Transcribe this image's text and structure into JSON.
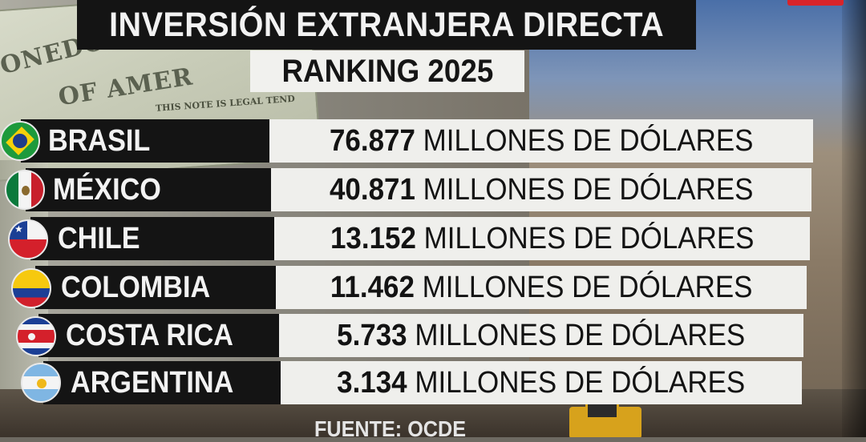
{
  "header": {
    "title": "INVERSIÓN EXTRANJERA DIRECTA",
    "subtitle": "RANKING 2025"
  },
  "background": {
    "banknote_lines": [
      "ONEDO",
      "OF AMER",
      "THIS NOTE IS LEGAL TEND"
    ]
  },
  "ranking": [
    {
      "country": "BRASIL",
      "value": "76.877",
      "unit": "MILLONES DE DÓLARES",
      "flag": "brazil-flag-icon"
    },
    {
      "country": "MÉXICO",
      "value": "40.871",
      "unit": "MILLONES DE DÓLARES",
      "flag": "mexico-flag-icon"
    },
    {
      "country": "CHILE",
      "value": "13.152",
      "unit": "MILLONES DE DÓLARES",
      "flag": "chile-flag-icon"
    },
    {
      "country": "COLOMBIA",
      "value": "11.462",
      "unit": "MILLONES DE DÓLARES",
      "flag": "colombia-flag-icon"
    },
    {
      "country": "COSTA RICA",
      "value": "5.733",
      "unit": "MILLONES DE DÓLARES",
      "flag": "costa-rica-flag-icon"
    },
    {
      "country": "ARGENTINA",
      "value": "3.134",
      "unit": "MILLONES DE DÓLARES",
      "flag": "argentina-flag-icon"
    }
  ],
  "footer": {
    "source": "FUENTE: OCDE"
  },
  "colors": {
    "title_bg": "#141414",
    "value_bg": "#efefec",
    "live_badge": "#d8242a"
  }
}
